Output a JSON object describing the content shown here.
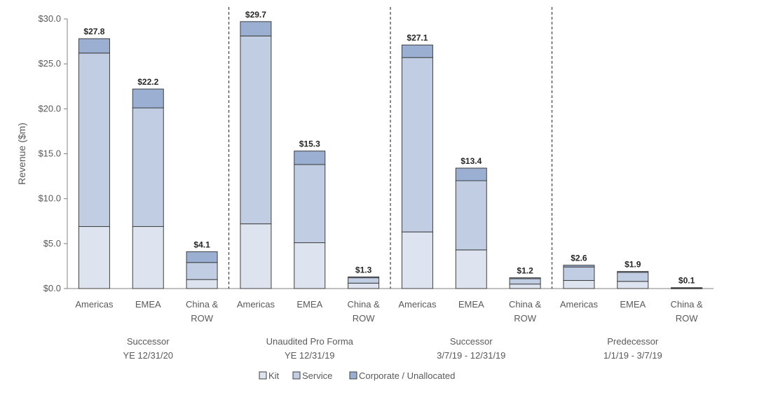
{
  "chart_data": {
    "type": "bar",
    "stacked": true,
    "ylabel": "Revenue ($m)",
    "ylim": [
      0,
      30
    ],
    "yticks": [
      0,
      5,
      10,
      15,
      20,
      25,
      30
    ],
    "ytick_labels": [
      "$0.0",
      "$5.0",
      "$10.0",
      "$15.0",
      "$20.0",
      "$25.0",
      "$30.0"
    ],
    "grid": false,
    "legend_position": "bottom-center",
    "colors": {
      "Kit": "#dde4ef",
      "Service": "#c0cde3",
      "Corporate / Unallocated": "#9aafd1",
      "outline": "#3f3f3f"
    },
    "legend": [
      "Kit",
      "Service",
      "Corporate / Unallocated"
    ],
    "groups": [
      {
        "label_lines": [
          "Successor",
          "YE 12/31/20"
        ],
        "categories": [
          {
            "label_lines": [
              "Americas"
            ],
            "kit": 6.9,
            "service": 19.3,
            "corporate": 1.6,
            "total_label": "$27.8"
          },
          {
            "label_lines": [
              "EMEA"
            ],
            "kit": 6.9,
            "service": 13.2,
            "corporate": 2.1,
            "total_label": "$22.2"
          },
          {
            "label_lines": [
              "China &",
              "ROW"
            ],
            "kit": 1.0,
            "service": 1.9,
            "corporate": 1.2,
            "total_label": "$4.1"
          }
        ]
      },
      {
        "label_lines": [
          "Unaudited Pro Forma",
          "YE 12/31/19"
        ],
        "categories": [
          {
            "label_lines": [
              "Americas"
            ],
            "kit": 7.2,
            "service": 20.9,
            "corporate": 1.6,
            "total_label": "$29.7"
          },
          {
            "label_lines": [
              "EMEA"
            ],
            "kit": 5.1,
            "service": 8.7,
            "corporate": 1.5,
            "total_label": "$15.3"
          },
          {
            "label_lines": [
              "China &",
              "ROW"
            ],
            "kit": 0.6,
            "service": 0.6,
            "corporate": 0.1,
            "total_label": "$1.3"
          }
        ]
      },
      {
        "label_lines": [
          "Successor",
          "3/7/19 - 12/31/19"
        ],
        "categories": [
          {
            "label_lines": [
              "Americas"
            ],
            "kit": 6.3,
            "service": 19.4,
            "corporate": 1.4,
            "total_label": "$27.1"
          },
          {
            "label_lines": [
              "EMEA"
            ],
            "kit": 4.3,
            "service": 7.7,
            "corporate": 1.4,
            "total_label": "$13.4"
          },
          {
            "label_lines": [
              "China &",
              "ROW"
            ],
            "kit": 0.5,
            "service": 0.6,
            "corporate": 0.1,
            "total_label": "$1.2"
          }
        ]
      },
      {
        "label_lines": [
          "Predecessor",
          "1/1/19 - 3/7/19"
        ],
        "categories": [
          {
            "label_lines": [
              "Americas"
            ],
            "kit": 0.9,
            "service": 1.5,
            "corporate": 0.2,
            "total_label": "$2.6"
          },
          {
            "label_lines": [
              "EMEA"
            ],
            "kit": 0.8,
            "service": 1.0,
            "corporate": 0.1,
            "total_label": "$1.9"
          },
          {
            "label_lines": [
              "China &",
              "ROW"
            ],
            "kit": 0.04,
            "service": 0.04,
            "corporate": 0.02,
            "total_label": "$0.1"
          }
        ]
      }
    ]
  }
}
